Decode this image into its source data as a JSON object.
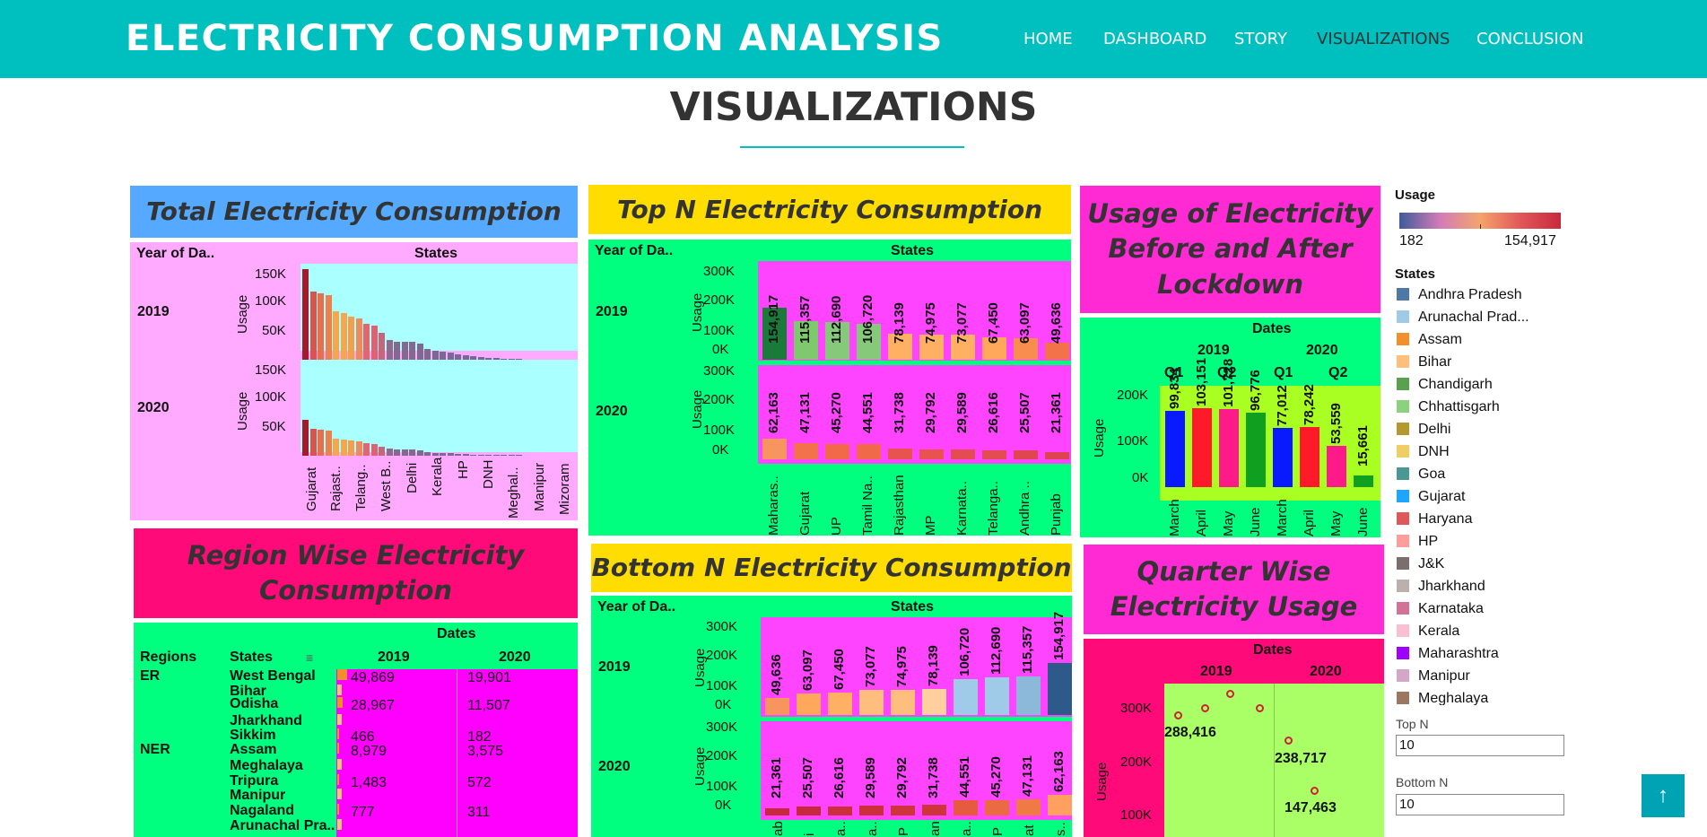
{
  "nav": {
    "brand": "ELECTRICITY CONSUMPTION ANALYSIS",
    "links": [
      "HOME",
      "DASHBOARD",
      "STORY",
      "VISUALIZATIONS",
      "CONCLUSION"
    ],
    "active": "VISUALIZATIONS"
  },
  "section_title": "VISUALIZATIONS",
  "colors": {
    "nav": "#00bfbf",
    "pink_panel": "#ffaaff",
    "green_panel": "#00ff7f",
    "magenta": "#ff44ff",
    "hot_pink": "#ff0a78",
    "yellow": "#ffdd00",
    "blue_title": "#55aaff"
  },
  "panel1": {
    "title": "Total Electricity Consumption",
    "header_left": "Year of Da..",
    "header_right": "States",
    "years": [
      "2019",
      "2020"
    ],
    "ylabel": "Usage",
    "ticks": [
      "150K",
      "100K",
      "50K"
    ],
    "xlabels": [
      "Gujarat",
      "Rajast..",
      "Telang..",
      "West B..",
      "Delhi",
      "Kerala",
      "HP",
      "DNH",
      "Meghal..",
      "Manipur",
      "Mizoram"
    ]
  },
  "panel2": {
    "title": "Top N Electricity Consumption",
    "header_left": "Year of Da..",
    "header_right": "States",
    "years": [
      "2019",
      "2020"
    ],
    "ylabel": "Usage",
    "ticks": [
      "300K",
      "200K",
      "100K",
      "0K"
    ],
    "xlabels": [
      "Maharas..",
      "Gujarat",
      "UP",
      "Tamil Na..",
      "Rajasthan",
      "MP",
      "Karnata..",
      "Telanga..",
      "Andhra ..",
      "Punjab"
    ],
    "values2019": [
      "154,917",
      "115,357",
      "112,690",
      "106,720",
      "78,139",
      "74,975",
      "73,077",
      "67,450",
      "63,097",
      "49,636"
    ],
    "values2020": [
      "62,163",
      "47,131",
      "45,270",
      "44,551",
      "31,738",
      "29,792",
      "29,589",
      "26,616",
      "25,507",
      "21,361"
    ]
  },
  "panel3": {
    "title": "Usage of Electricity Before and After Lockdown",
    "header": "Dates",
    "years": [
      "2019",
      "2020"
    ],
    "quarters": [
      "Q1",
      "Q2",
      "Q1",
      "Q2"
    ],
    "ylabel": "Usage",
    "ticks": [
      "200K",
      "100K",
      "0K"
    ],
    "months": [
      "March",
      "April",
      "May",
      "June",
      "March",
      "April",
      "May",
      "June"
    ],
    "values": [
      "99,834",
      "103,151",
      "101,728",
      "96,776",
      "77,012",
      "78,242",
      "53,559",
      "15,661"
    ]
  },
  "legend": {
    "usage_title": "Usage",
    "usage_min": "182",
    "usage_max": "154,917",
    "states_title": "States",
    "states": [
      {
        "name": "Andhra Pradesh",
        "color": "#4e79a7"
      },
      {
        "name": "Arunachal Prad...",
        "color": "#a0cbe8"
      },
      {
        "name": "Assam",
        "color": "#f28e2b"
      },
      {
        "name": "Bihar",
        "color": "#ffbe7d"
      },
      {
        "name": "Chandigarh",
        "color": "#59a14f"
      },
      {
        "name": "Chhattisgarh",
        "color": "#8cd17d"
      },
      {
        "name": "Delhi",
        "color": "#b6992d"
      },
      {
        "name": "DNH",
        "color": "#f1ce63"
      },
      {
        "name": "Goa",
        "color": "#499894"
      },
      {
        "name": "Gujarat",
        "color": "#1ea5ff"
      },
      {
        "name": "Haryana",
        "color": "#e15759"
      },
      {
        "name": "HP",
        "color": "#ff9d9a"
      },
      {
        "name": "J&K",
        "color": "#79706e"
      },
      {
        "name": "Jharkhand",
        "color": "#bab0ac"
      },
      {
        "name": "Karnataka",
        "color": "#d37295"
      },
      {
        "name": "Kerala",
        "color": "#fabfd2"
      },
      {
        "name": "Maharashtra",
        "color": "#a000ff"
      },
      {
        "name": "Manipur",
        "color": "#d4a6c8"
      },
      {
        "name": "Meghalaya",
        "color": "#9d7660"
      }
    ],
    "topn_label": "Top N",
    "topn_value": "10",
    "bottomn_label": "Bottom N",
    "bottomn_value": "10"
  },
  "panel4": {
    "title": "Region Wise Electricity Consumption",
    "header": "Dates",
    "col_regions": "Regions",
    "col_states": "States",
    "years": [
      "2019",
      "2020"
    ],
    "rows": [
      {
        "region": "ER",
        "state": "West Bengal",
        "v2019": "49,869",
        "v2020": "19,901"
      },
      {
        "region": "",
        "state": "Bihar",
        "v2019": "",
        "v2020": ""
      },
      {
        "region": "",
        "state": "Odisha",
        "v2019": "28,967",
        "v2020": "11,507"
      },
      {
        "region": "",
        "state": "Jharkhand",
        "v2019": "",
        "v2020": ""
      },
      {
        "region": "",
        "state": "Sikkim",
        "v2019": "466",
        "v2020": "182"
      },
      {
        "region": "NER",
        "state": "Assam",
        "v2019": "8,979",
        "v2020": "3,575"
      },
      {
        "region": "",
        "state": "Meghalaya",
        "v2019": "",
        "v2020": ""
      },
      {
        "region": "",
        "state": "Tripura",
        "v2019": "1,483",
        "v2020": "572"
      },
      {
        "region": "",
        "state": "Manipur",
        "v2019": "",
        "v2020": ""
      },
      {
        "region": "",
        "state": "Nagaland",
        "v2019": "777",
        "v2020": "311"
      },
      {
        "region": "",
        "state": "Arunachal Pra..",
        "v2019": "",
        "v2020": ""
      }
    ]
  },
  "panel5": {
    "title": "Bottom N Electricity Consumption",
    "header_left": "Year of Da..",
    "header_right": "States",
    "years": [
      "2019",
      "2020"
    ],
    "ylabel": "Usage",
    "ticks": [
      "300K",
      "200K",
      "100K",
      "0K"
    ],
    "values2019": [
      "49,636",
      "63,097",
      "67,450",
      "73,077",
      "74,975",
      "78,139",
      "106,720",
      "112,690",
      "115,357",
      "154,917"
    ],
    "values2020": [
      "21,361",
      "25,507",
      "26,616",
      "29,589",
      "29,792",
      "31,738",
      "44,551",
      "45,270",
      "47,131",
      "62,163"
    ],
    "xlabels": [
      "ab",
      "i",
      "a..",
      "a..",
      "P",
      "an",
      "a..",
      "P",
      "at",
      "s.."
    ]
  },
  "panel6": {
    "title": "Quarter Wise Electricity Usage",
    "header": "Dates",
    "years": [
      "2019",
      "2020"
    ],
    "ylabel": "Usage",
    "ticks": [
      "300K",
      "200K",
      "100K"
    ],
    "labels": [
      "288,416",
      "238,717",
      "147,463"
    ]
  }
}
